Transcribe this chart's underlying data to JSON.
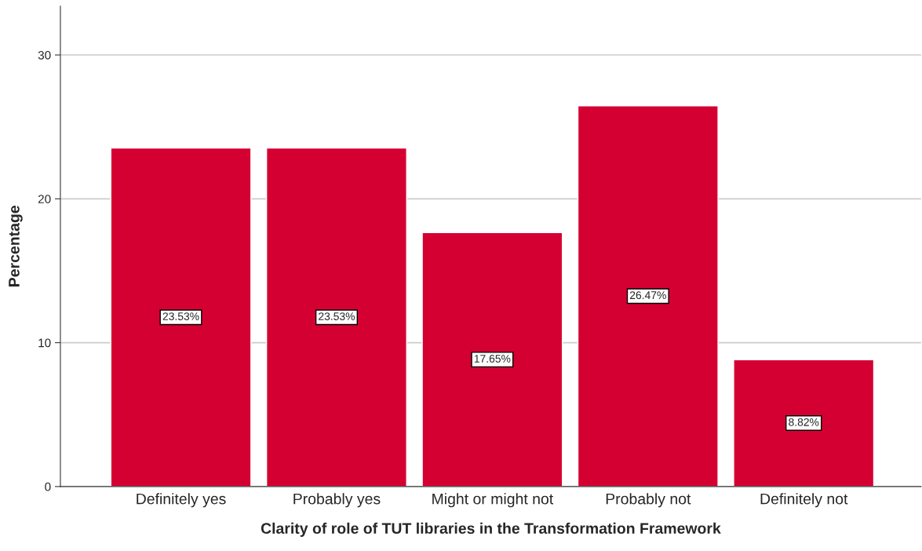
{
  "chart_data": {
    "type": "bar",
    "xlabel": "Clarity of role of TUT libraries in the Transformation Framework",
    "ylabel": "Percentage",
    "categories": [
      "Definitely yes",
      "Probably yes",
      "Might or might not",
      "Probably not",
      "Definitely not"
    ],
    "values": [
      23.53,
      23.53,
      17.65,
      26.47,
      8.82
    ],
    "value_labels": [
      "23.53%",
      "23.53%",
      "17.65%",
      "26.47%",
      "8.82%"
    ],
    "color": "#d50032",
    "ylim": [
      0,
      33.4
    ],
    "yticks": [
      0,
      10,
      20,
      30
    ],
    "grid": "y"
  }
}
